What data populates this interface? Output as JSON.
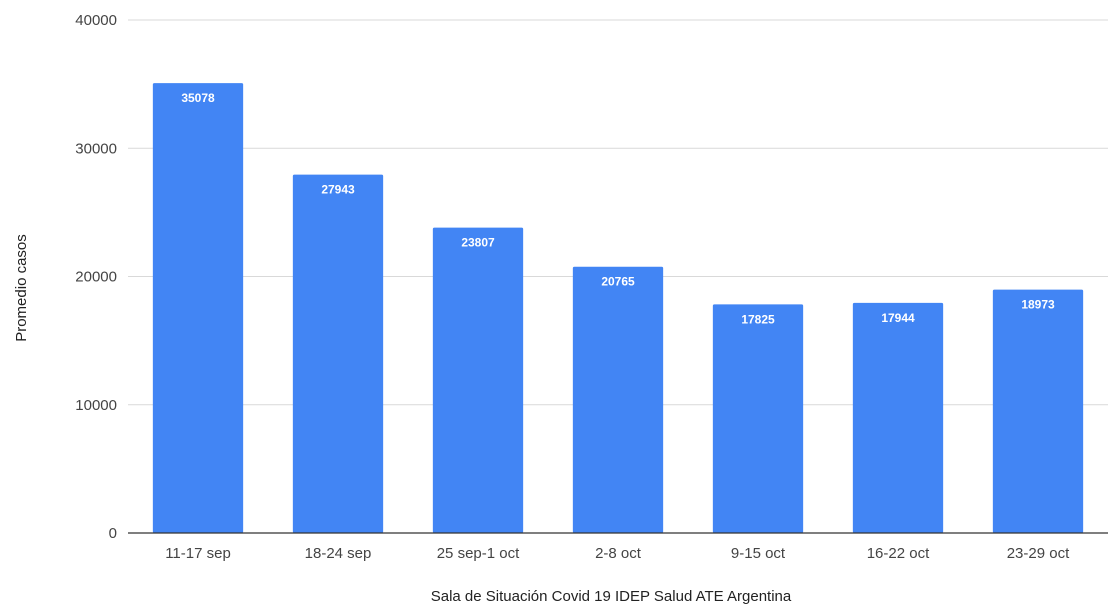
{
  "chart_data": {
    "type": "bar",
    "categories": [
      "11-17 sep",
      "18-24 sep",
      "25 sep-1 oct",
      "2-8 oct",
      "9-15 oct",
      "16-22 oct",
      "23-29 oct"
    ],
    "series": [
      {
        "values": [
          35078,
          27943,
          23807,
          20765,
          17825,
          17944,
          18973
        ],
        "color": "#4285f4"
      }
    ],
    "data_labels": [
      "35078",
      "27943",
      "23807",
      "20765",
      "17825",
      "17944",
      "18973"
    ],
    "title": "",
    "xlabel": "Sala de Situación Covid 19 IDEP Salud ATE Argentina",
    "ylabel": "Promedio casos",
    "ylim": [
      0,
      40000
    ],
    "yticks": [
      0,
      10000,
      20000,
      30000,
      40000
    ],
    "ytick_labels": [
      "0",
      "10000",
      "20000",
      "30000",
      "40000"
    ],
    "grid": true,
    "legend": "none",
    "gridline_color": "#d9d9d9",
    "axis_color": "#333333"
  }
}
